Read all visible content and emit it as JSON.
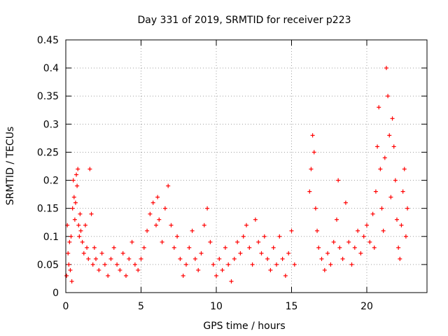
{
  "chart_data": {
    "type": "scatter",
    "title": "Day 331 of 2019, SRMTID for receiver p223",
    "xlabel": "GPS time / hours",
    "ylabel": "SRMTID / TECUs",
    "xlim": [
      0,
      24
    ],
    "ylim": [
      0,
      0.45
    ],
    "xticks": [
      0,
      5,
      10,
      15,
      20
    ],
    "xtick_labels": [
      "0",
      "5",
      "10",
      "15",
      "20"
    ],
    "yticks": [
      0,
      0.05,
      0.1,
      0.15,
      0.2,
      0.25,
      0.3,
      0.35,
      0.4,
      0.45
    ],
    "ytick_labels": [
      "0",
      "0.05",
      "0.1",
      "0.15",
      "0.2",
      "0.25",
      "0.3",
      "0.35",
      "0.4",
      "0.45"
    ],
    "grid": true,
    "marker": "+",
    "series": [
      {
        "name": "SRMTID",
        "color": "#ff0000",
        "points": [
          [
            0.05,
            0.03
          ],
          [
            0.1,
            0.12
          ],
          [
            0.15,
            0.07
          ],
          [
            0.2,
            0.05
          ],
          [
            0.25,
            0.09
          ],
          [
            0.3,
            0.04
          ],
          [
            0.35,
            0.1
          ],
          [
            0.4,
            0.02
          ],
          [
            0.45,
            0.15
          ],
          [
            0.5,
            0.2
          ],
          [
            0.55,
            0.17
          ],
          [
            0.6,
            0.13
          ],
          [
            0.65,
            0.16
          ],
          [
            0.7,
            0.21
          ],
          [
            0.75,
            0.19
          ],
          [
            0.8,
            0.22
          ],
          [
            0.85,
            0.12
          ],
          [
            0.9,
            0.1
          ],
          [
            0.95,
            0.14
          ],
          [
            1.0,
            0.11
          ],
          [
            1.1,
            0.09
          ],
          [
            1.2,
            0.07
          ],
          [
            1.3,
            0.12
          ],
          [
            1.4,
            0.08
          ],
          [
            1.5,
            0.06
          ],
          [
            1.6,
            0.22
          ],
          [
            1.7,
            0.14
          ],
          [
            1.8,
            0.05
          ],
          [
            1.9,
            0.08
          ],
          [
            2.0,
            0.06
          ],
          [
            2.2,
            0.04
          ],
          [
            2.4,
            0.07
          ],
          [
            2.6,
            0.05
          ],
          [
            2.8,
            0.03
          ],
          [
            3.0,
            0.06
          ],
          [
            3.2,
            0.08
          ],
          [
            3.4,
            0.05
          ],
          [
            3.6,
            0.04
          ],
          [
            3.8,
            0.07
          ],
          [
            4.0,
            0.03
          ],
          [
            4.2,
            0.06
          ],
          [
            4.4,
            0.09
          ],
          [
            4.6,
            0.05
          ],
          [
            4.8,
            0.04
          ],
          [
            5.0,
            0.06
          ],
          [
            5.2,
            0.08
          ],
          [
            5.4,
            0.11
          ],
          [
            5.6,
            0.14
          ],
          [
            5.8,
            0.16
          ],
          [
            6.0,
            0.12
          ],
          [
            6.1,
            0.17
          ],
          [
            6.2,
            0.13
          ],
          [
            6.4,
            0.09
          ],
          [
            6.6,
            0.15
          ],
          [
            6.8,
            0.19
          ],
          [
            7.0,
            0.12
          ],
          [
            7.2,
            0.08
          ],
          [
            7.4,
            0.1
          ],
          [
            7.6,
            0.06
          ],
          [
            7.8,
            0.03
          ],
          [
            8.0,
            0.05
          ],
          [
            8.2,
            0.08
          ],
          [
            8.4,
            0.11
          ],
          [
            8.6,
            0.06
          ],
          [
            8.8,
            0.04
          ],
          [
            9.0,
            0.07
          ],
          [
            9.2,
            0.12
          ],
          [
            9.4,
            0.15
          ],
          [
            9.6,
            0.09
          ],
          [
            9.8,
            0.05
          ],
          [
            10.0,
            0.03
          ],
          [
            10.2,
            0.06
          ],
          [
            10.4,
            0.04
          ],
          [
            10.6,
            0.08
          ],
          [
            10.8,
            0.05
          ],
          [
            11.0,
            0.02
          ],
          [
            11.2,
            0.06
          ],
          [
            11.4,
            0.09
          ],
          [
            11.6,
            0.07
          ],
          [
            11.8,
            0.1
          ],
          [
            12.0,
            0.12
          ],
          [
            12.2,
            0.08
          ],
          [
            12.4,
            0.05
          ],
          [
            12.6,
            0.13
          ],
          [
            12.8,
            0.09
          ],
          [
            13.0,
            0.07
          ],
          [
            13.2,
            0.1
          ],
          [
            13.4,
            0.06
          ],
          [
            13.6,
            0.04
          ],
          [
            13.8,
            0.08
          ],
          [
            14.0,
            0.05
          ],
          [
            14.2,
            0.1
          ],
          [
            14.4,
            0.06
          ],
          [
            14.6,
            0.03
          ],
          [
            14.8,
            0.07
          ],
          [
            15.0,
            0.11
          ],
          [
            15.2,
            0.05
          ],
          [
            16.2,
            0.18
          ],
          [
            16.3,
            0.22
          ],
          [
            16.4,
            0.28
          ],
          [
            16.5,
            0.25
          ],
          [
            16.6,
            0.15
          ],
          [
            16.7,
            0.11
          ],
          [
            16.8,
            0.08
          ],
          [
            17.0,
            0.06
          ],
          [
            17.2,
            0.04
          ],
          [
            17.4,
            0.07
          ],
          [
            17.6,
            0.05
          ],
          [
            17.8,
            0.09
          ],
          [
            18.0,
            0.13
          ],
          [
            18.1,
            0.2
          ],
          [
            18.2,
            0.08
          ],
          [
            18.4,
            0.06
          ],
          [
            18.6,
            0.16
          ],
          [
            18.8,
            0.09
          ],
          [
            19.0,
            0.05
          ],
          [
            19.2,
            0.08
          ],
          [
            19.4,
            0.11
          ],
          [
            19.6,
            0.07
          ],
          [
            19.8,
            0.1
          ],
          [
            20.0,
            0.12
          ],
          [
            20.2,
            0.09
          ],
          [
            20.4,
            0.14
          ],
          [
            20.5,
            0.08
          ],
          [
            20.6,
            0.18
          ],
          [
            20.7,
            0.26
          ],
          [
            20.8,
            0.33
          ],
          [
            20.9,
            0.22
          ],
          [
            21.0,
            0.15
          ],
          [
            21.1,
            0.11
          ],
          [
            21.2,
            0.24
          ],
          [
            21.3,
            0.4
          ],
          [
            21.4,
            0.35
          ],
          [
            21.5,
            0.28
          ],
          [
            21.6,
            0.17
          ],
          [
            21.7,
            0.31
          ],
          [
            21.8,
            0.26
          ],
          [
            21.9,
            0.2
          ],
          [
            22.0,
            0.13
          ],
          [
            22.1,
            0.08
          ],
          [
            22.2,
            0.06
          ],
          [
            22.3,
            0.12
          ],
          [
            22.4,
            0.18
          ],
          [
            22.5,
            0.22
          ],
          [
            22.6,
            0.1
          ],
          [
            22.7,
            0.15
          ]
        ]
      }
    ]
  }
}
